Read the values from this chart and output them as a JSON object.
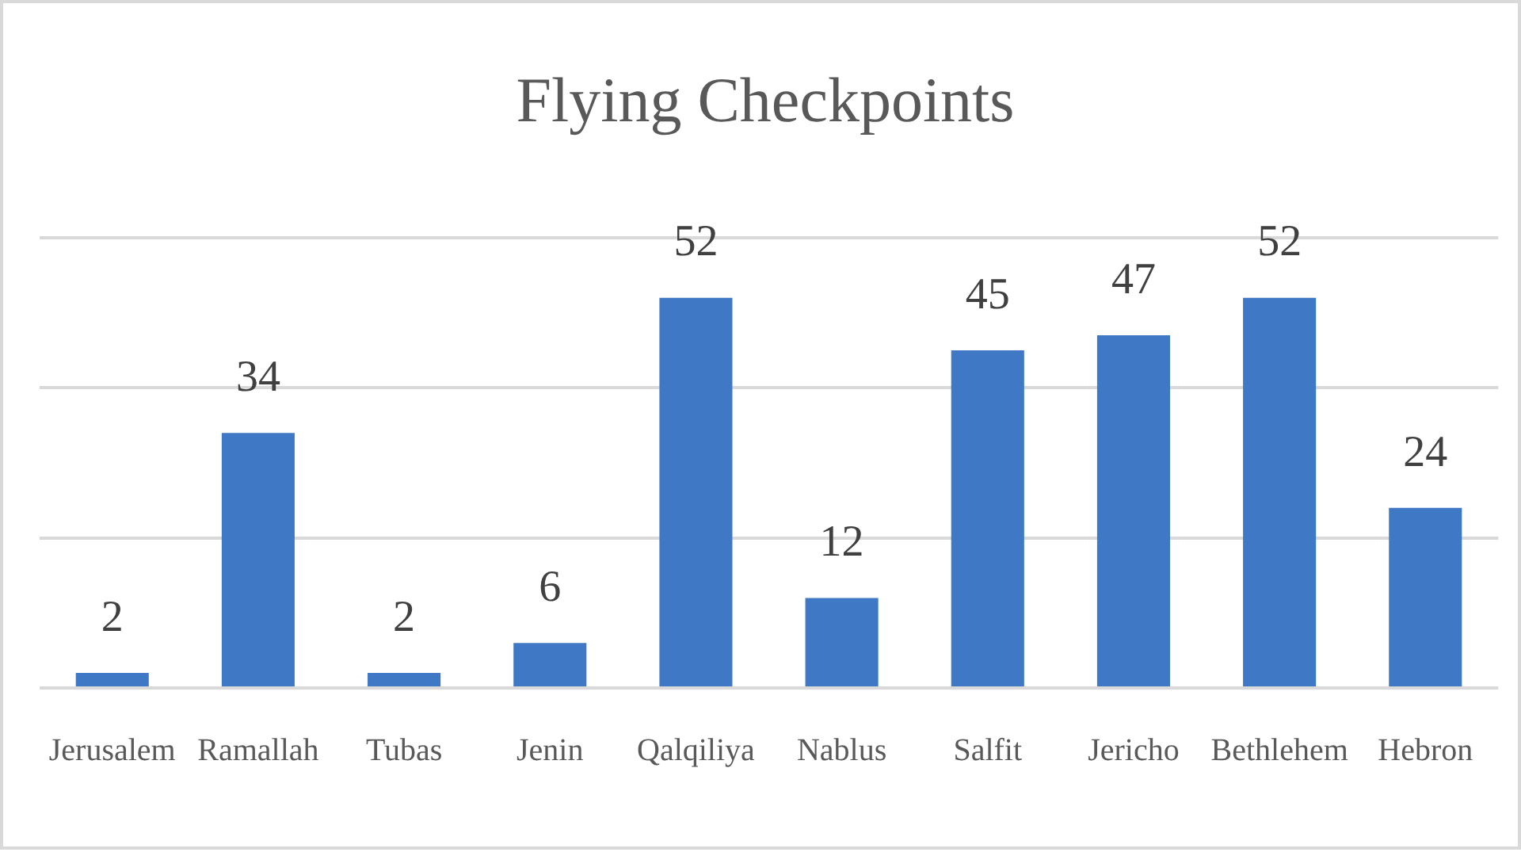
{
  "chart_data": {
    "type": "bar",
    "title": "Flying Checkpoints",
    "categories": [
      "Jerusalem",
      "Ramallah",
      "Tubas",
      "Jenin",
      "Qalqiliya",
      "Nablus",
      "Salfit",
      "Jericho",
      "Bethlehem",
      "Hebron"
    ],
    "values": [
      2,
      34,
      2,
      6,
      52,
      12,
      45,
      47,
      52,
      24
    ],
    "color": "#3f78c4",
    "ylim": [
      0,
      60
    ],
    "yticks": [
      {
        "value": 0,
        "label": null
      },
      {
        "value": 20,
        "label": null
      },
      {
        "value": 40,
        "label": null
      },
      {
        "value": 60,
        "label": null
      }
    ],
    "grid": "y",
    "tick_labels": "x",
    "data_labels": true
  }
}
